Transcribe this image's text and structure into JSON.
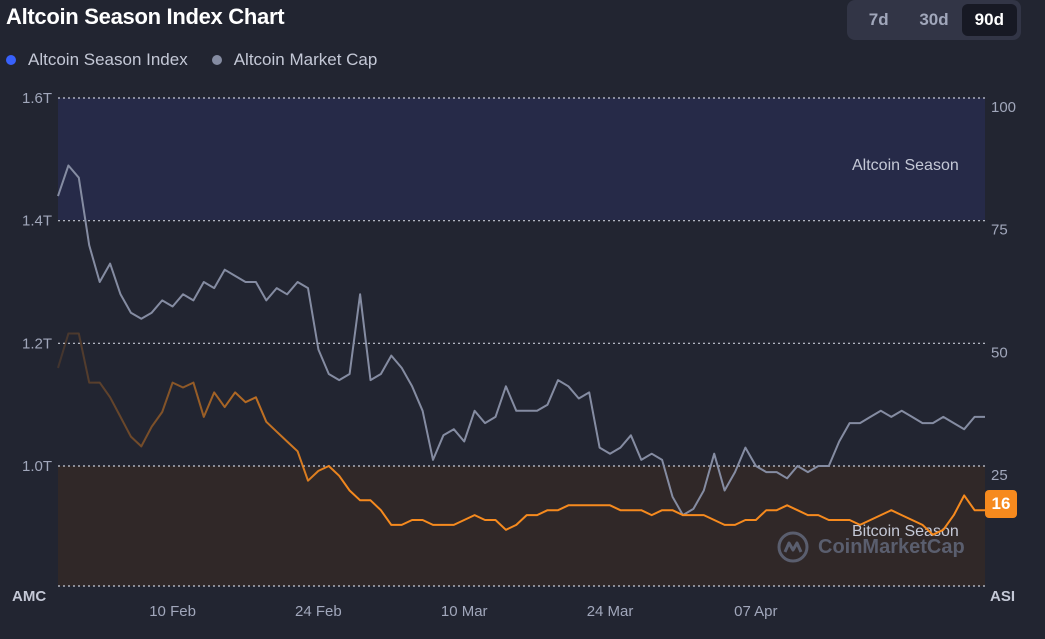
{
  "header": {
    "title": "Altcoin Season Index Chart",
    "ranges": [
      "7d",
      "30d",
      "90d"
    ],
    "active_range": "90d"
  },
  "legend": [
    {
      "label": "Altcoin Season Index",
      "color": "#3861fb"
    },
    {
      "label": "Altcoin Market Cap",
      "color": "#858ca2"
    }
  ],
  "chart_data": {
    "type": "line",
    "left_axis": {
      "label": "AMC",
      "ticks": [
        "1.6T",
        "1.4T",
        "1.2T",
        "1.0T"
      ],
      "ylim": [
        0.8,
        1.6
      ]
    },
    "right_axis": {
      "label": "ASI",
      "ticks": [
        "100",
        "75",
        "50",
        "25"
      ],
      "ylim": [
        0,
        100
      ]
    },
    "x_ticks": [
      "10 Feb",
      "24 Feb",
      "10 Mar",
      "24 Mar",
      "07 Apr"
    ],
    "zones": {
      "upper": "Altcoin Season",
      "lower": "Bitcoin Season"
    },
    "current_value": "16",
    "series": [
      {
        "name": "Altcoin Season Index",
        "axis": "right",
        "x": [
          0,
          1,
          2,
          3,
          4,
          5,
          6,
          7,
          8,
          9,
          10,
          11,
          12,
          13,
          14,
          15,
          16,
          17,
          18,
          19,
          20,
          21,
          22,
          23,
          24,
          25,
          26,
          27,
          28,
          29,
          30,
          31,
          32,
          33,
          34,
          35,
          36,
          37,
          38,
          39,
          40,
          41,
          42,
          43,
          44,
          45,
          46,
          47,
          48,
          49,
          50,
          51,
          52,
          53,
          54,
          55,
          56,
          57,
          58,
          59,
          60,
          61,
          62,
          63,
          64,
          65,
          66,
          67,
          68,
          69,
          70,
          71,
          72,
          73,
          74,
          75,
          76,
          77,
          78,
          79,
          80,
          81,
          82,
          83,
          84,
          85,
          86,
          87,
          88,
          89
        ],
        "values": [
          45,
          52,
          52,
          42,
          42,
          39,
          35,
          31,
          29,
          33,
          36,
          42,
          41,
          42,
          35,
          40,
          37,
          40,
          38,
          39,
          34,
          32,
          30,
          28,
          22,
          24,
          25,
          23,
          20,
          18,
          18,
          16,
          13,
          13,
          14,
          14,
          13,
          13,
          13,
          14,
          15,
          14,
          14,
          12,
          13,
          15,
          15,
          16,
          16,
          17,
          17,
          17,
          17,
          17,
          16,
          16,
          16,
          15,
          16,
          16,
          15,
          15,
          15,
          14,
          13,
          13,
          14,
          14,
          16,
          16,
          17,
          16,
          15,
          15,
          14,
          14,
          14,
          13,
          14,
          15,
          16,
          15,
          14,
          13,
          11,
          12,
          15,
          19,
          16,
          16
        ],
        "color": "#f68a1e"
      },
      {
        "name": "Altcoin Market Cap",
        "axis": "left",
        "x": [
          0,
          1,
          2,
          3,
          4,
          5,
          6,
          7,
          8,
          9,
          10,
          11,
          12,
          13,
          14,
          15,
          16,
          17,
          18,
          19,
          20,
          21,
          22,
          23,
          24,
          25,
          26,
          27,
          28,
          29,
          30,
          31,
          32,
          33,
          34,
          35,
          36,
          37,
          38,
          39,
          40,
          41,
          42,
          43,
          44,
          45,
          46,
          47,
          48,
          49,
          50,
          51,
          52,
          53,
          54,
          55,
          56,
          57,
          58,
          59,
          60,
          61,
          62,
          63,
          64,
          65,
          66,
          67,
          68,
          69,
          70,
          71,
          72,
          73,
          74,
          75,
          76,
          77,
          78,
          79,
          80,
          81,
          82,
          83,
          84,
          85,
          86,
          87,
          88,
          89
        ],
        "values": [
          1.44,
          1.49,
          1.47,
          1.36,
          1.3,
          1.33,
          1.28,
          1.25,
          1.24,
          1.25,
          1.27,
          1.26,
          1.28,
          1.27,
          1.3,
          1.29,
          1.32,
          1.31,
          1.3,
          1.3,
          1.27,
          1.29,
          1.28,
          1.3,
          1.29,
          1.19,
          1.15,
          1.14,
          1.15,
          1.28,
          1.14,
          1.15,
          1.18,
          1.16,
          1.13,
          1.09,
          1.01,
          1.05,
          1.06,
          1.04,
          1.09,
          1.07,
          1.08,
          1.13,
          1.09,
          1.09,
          1.09,
          1.1,
          1.14,
          1.13,
          1.11,
          1.12,
          1.03,
          1.02,
          1.03,
          1.05,
          1.01,
          1.02,
          1.01,
          0.95,
          0.92,
          0.93,
          0.96,
          1.02,
          0.96,
          0.99,
          1.03,
          1.0,
          0.99,
          0.99,
          0.98,
          1.0,
          0.99,
          1.0,
          1.0,
          1.04,
          1.07,
          1.07,
          1.08,
          1.09,
          1.08,
          1.09,
          1.08,
          1.07,
          1.07,
          1.08,
          1.07,
          1.06,
          1.08,
          1.08
        ],
        "color": "#858ca2"
      }
    ]
  }
}
